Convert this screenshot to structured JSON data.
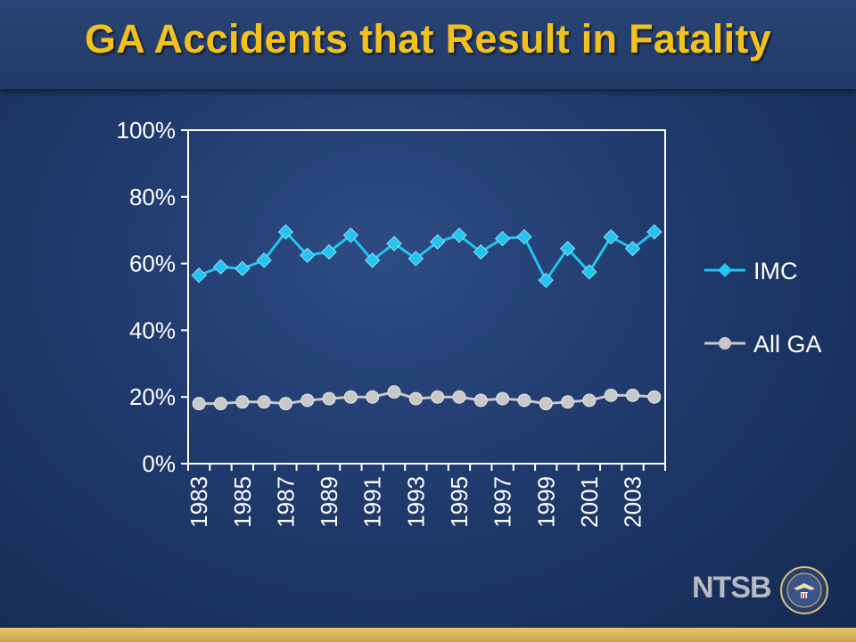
{
  "slide": {
    "title": "GA Accidents that Result in Fatality",
    "logo_text": "NTSB",
    "seal_icon": "ntsb-seal-icon"
  },
  "colors": {
    "background": "#1f3a6c",
    "title": "#f2c21b",
    "imc_series": "#22c4f0",
    "all_ga_series": "#c8c8c8",
    "plot_border": "#ffffff",
    "text": "#ffffff",
    "bottom_bar": "#d8b55c"
  },
  "chart_data": {
    "type": "line",
    "title": "",
    "xlabel": "",
    "ylabel": "",
    "ylim": [
      0,
      100
    ],
    "y_ticks": [
      "0%",
      "20%",
      "40%",
      "60%",
      "80%",
      "100%"
    ],
    "x": [
      1983,
      1984,
      1985,
      1986,
      1987,
      1988,
      1989,
      1990,
      1991,
      1992,
      1993,
      1994,
      1995,
      1996,
      1997,
      1998,
      1999,
      2000,
      2001,
      2002,
      2003,
      2004
    ],
    "x_tick_labels": [
      "1983",
      "1985",
      "1987",
      "1989",
      "1991",
      "1993",
      "1995",
      "1997",
      "1999",
      "2001",
      "2003"
    ],
    "grid": false,
    "legend_position": "right",
    "series": [
      {
        "name": "IMC",
        "marker": "diamond",
        "values": [
          56.5,
          59,
          58.5,
          61,
          69.5,
          62.5,
          63.5,
          68.5,
          61,
          66,
          61.5,
          66.5,
          68.5,
          63.5,
          67.5,
          68,
          55,
          64.5,
          57.5,
          68,
          64.5,
          69.5
        ]
      },
      {
        "name": "All GA",
        "marker": "circle",
        "values": [
          18,
          18,
          18.5,
          18.5,
          18,
          19,
          19.5,
          20,
          20,
          21.5,
          19.5,
          20,
          20,
          19,
          19.5,
          19,
          18,
          18.5,
          19,
          20.5,
          20.5,
          20
        ]
      }
    ]
  }
}
